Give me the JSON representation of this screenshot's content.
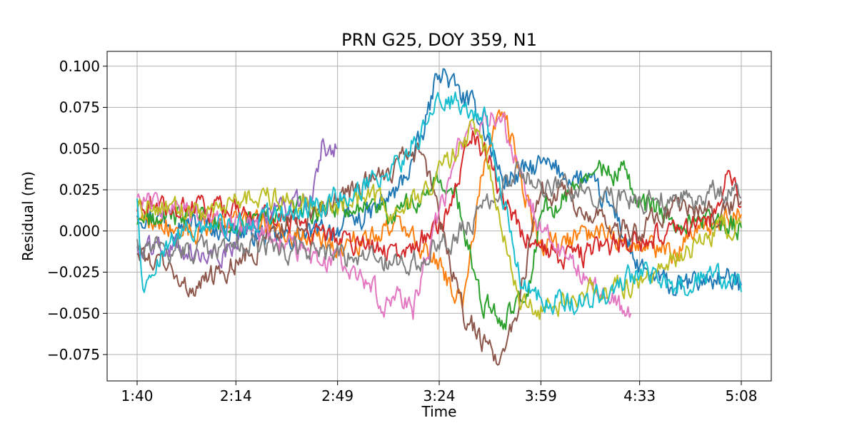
{
  "chart_data": {
    "type": "line",
    "title": "PRN G25, DOY 359, N1",
    "xlabel": "Time",
    "ylabel": "Residual (m)",
    "x_ticks": [
      "1:40",
      "2:14",
      "2:49",
      "3:24",
      "3:59",
      "4:33",
      "5:08"
    ],
    "x_range_minutes": [
      100,
      308
    ],
    "ylim": [
      -0.091,
      0.109
    ],
    "y_ticks": [
      {
        "value": 0.1,
        "label": "0.100"
      },
      {
        "value": 0.075,
        "label": "0.075"
      },
      {
        "value": 0.05,
        "label": "0.050"
      },
      {
        "value": 0.025,
        "label": "0.025"
      },
      {
        "value": 0.0,
        "label": "0.000"
      },
      {
        "value": -0.025,
        "label": "−0.025"
      },
      {
        "value": -0.05,
        "label": "−0.050"
      },
      {
        "value": -0.075,
        "label": "−0.075"
      }
    ],
    "grid": true,
    "series": [
      {
        "color": "#1f77b4",
        "x": [
          "1:40",
          "1:58",
          "2:14",
          "2:32",
          "2:49",
          "3:00",
          "3:10",
          "3:18",
          "3:24",
          "3:30",
          "3:38",
          "3:46",
          "3:59",
          "4:06",
          "4:15",
          "4:25",
          "4:33",
          "4:45",
          "5:00",
          "5:08"
        ],
        "values": [
          0.012,
          0.005,
          0.0,
          -0.005,
          0.002,
          0.01,
          0.025,
          0.055,
          0.1,
          0.085,
          0.07,
          0.03,
          0.04,
          0.035,
          0.03,
          0.01,
          -0.025,
          -0.035,
          -0.028,
          -0.033
        ]
      },
      {
        "color": "#ff7f0e",
        "x": [
          "1:40",
          "1:58",
          "2:14",
          "2:32",
          "2:49",
          "3:00",
          "3:10",
          "3:18",
          "3:24",
          "3:32",
          "3:40",
          "3:46",
          "3:59",
          "4:10",
          "4:20",
          "4:33",
          "4:45",
          "5:00",
          "5:08"
        ],
        "values": [
          0.01,
          0.0,
          0.008,
          -0.002,
          -0.008,
          -0.005,
          0.005,
          -0.01,
          -0.02,
          -0.045,
          0.05,
          0.072,
          -0.01,
          -0.005,
          0.002,
          -0.01,
          -0.012,
          0.005,
          0.01
        ]
      },
      {
        "color": "#2ca02c",
        "x": [
          "1:40",
          "1:58",
          "2:14",
          "2:32",
          "2:49",
          "3:00",
          "3:10",
          "3:18",
          "3:24",
          "3:30",
          "3:38",
          "3:46",
          "3:55",
          "3:59",
          "4:10",
          "4:20",
          "4:28",
          "4:33",
          "4:45",
          "5:00",
          "5:08"
        ],
        "values": [
          0.005,
          0.01,
          0.002,
          0.01,
          0.015,
          0.012,
          0.01,
          0.02,
          0.03,
          0.02,
          -0.04,
          -0.055,
          -0.03,
          0.01,
          0.025,
          0.035,
          0.038,
          0.015,
          0.01,
          0.005,
          0.002
        ]
      },
      {
        "color": "#d62728",
        "x": [
          "1:40",
          "1:58",
          "2:14",
          "2:32",
          "2:49",
          "3:00",
          "3:10",
          "3:18",
          "3:24",
          "3:30",
          "3:36",
          "3:44",
          "3:52",
          "3:59",
          "4:10",
          "4:20",
          "4:33",
          "4:45",
          "5:00",
          "5:03",
          "5:08"
        ],
        "values": [
          0.012,
          0.015,
          0.01,
          0.005,
          -0.005,
          -0.01,
          -0.015,
          -0.005,
          0.0,
          0.03,
          0.062,
          0.03,
          0.0,
          -0.01,
          -0.018,
          -0.01,
          -0.005,
          -0.002,
          0.01,
          0.035,
          0.015
        ]
      },
      {
        "color": "#9467bd",
        "x": [
          "1:40",
          "1:52",
          "2:05",
          "2:14",
          "2:25",
          "2:35",
          "2:40",
          "2:44",
          "2:46",
          "2:49"
        ],
        "values": [
          -0.01,
          -0.012,
          -0.02,
          -0.005,
          0.01,
          0.015,
          0.02,
          0.057,
          0.048,
          0.05
        ]
      },
      {
        "color": "#8c564b",
        "x": [
          "1:40",
          "1:50",
          "2:00",
          "2:14",
          "2:32",
          "2:49",
          "3:00",
          "3:10",
          "3:18",
          "3:24",
          "3:32",
          "3:40",
          "3:46",
          "3:52",
          "3:59",
          "4:10",
          "4:20",
          "4:33",
          "4:45",
          "5:00",
          "5:08"
        ],
        "values": [
          -0.015,
          -0.02,
          -0.035,
          -0.02,
          0.005,
          0.02,
          0.03,
          0.04,
          0.05,
          0.01,
          -0.05,
          -0.07,
          -0.08,
          -0.04,
          0.025,
          0.02,
          0.005,
          0.0,
          0.015,
          0.01,
          0.018
        ]
      },
      {
        "color": "#e377c2",
        "x": [
          "1:40",
          "1:58",
          "2:14",
          "2:32",
          "2:49",
          "3:00",
          "3:05",
          "3:10",
          "3:15",
          "3:20",
          "3:26",
          "3:30",
          "3:36",
          "3:40",
          "3:46",
          "3:59",
          "4:10",
          "4:20",
          "4:25",
          "4:28",
          "4:30"
        ],
        "values": [
          0.018,
          0.01,
          0.005,
          -0.01,
          -0.02,
          -0.03,
          -0.045,
          -0.04,
          -0.05,
          -0.01,
          0.02,
          0.05,
          0.06,
          0.07,
          0.065,
          0.0,
          -0.02,
          -0.04,
          -0.045,
          -0.052,
          -0.05
        ]
      },
      {
        "color": "#7f7f7f",
        "x": [
          "1:40",
          "1:58",
          "2:14",
          "2:32",
          "2:49",
          "3:00",
          "3:10",
          "3:18",
          "3:24",
          "3:32",
          "3:40",
          "3:46",
          "3:52",
          "3:59",
          "4:10",
          "4:20",
          "4:33",
          "4:45",
          "5:00",
          "5:08"
        ],
        "values": [
          -0.008,
          -0.012,
          -0.01,
          -0.012,
          -0.015,
          -0.018,
          -0.02,
          -0.015,
          -0.01,
          0.0,
          0.015,
          0.03,
          0.035,
          0.03,
          0.025,
          0.02,
          0.018,
          0.02,
          0.025,
          0.02
        ]
      },
      {
        "color": "#bcbd22",
        "x": [
          "1:40",
          "1:58",
          "2:14",
          "2:32",
          "2:49",
          "3:00",
          "3:10",
          "3:18",
          "3:24",
          "3:30",
          "3:36",
          "3:40",
          "3:46",
          "3:52",
          "3:59",
          "4:10",
          "4:20",
          "4:33",
          "4:40",
          "4:45",
          "5:00",
          "5:08"
        ],
        "values": [
          0.015,
          0.01,
          0.018,
          0.02,
          0.015,
          0.02,
          0.012,
          0.02,
          0.035,
          0.05,
          0.06,
          0.045,
          0.0,
          -0.04,
          -0.048,
          -0.04,
          -0.035,
          -0.03,
          -0.025,
          -0.015,
          0.0,
          0.005
        ]
      },
      {
        "color": "#17becf",
        "x": [
          "1:40",
          "1:42",
          "1:50",
          "2:00",
          "2:14",
          "2:32",
          "2:49",
          "3:00",
          "3:10",
          "3:18",
          "3:24",
          "3:30",
          "3:40",
          "3:46",
          "3:52",
          "3:59",
          "4:10",
          "4:20",
          "4:33",
          "4:45",
          "5:00",
          "5:08"
        ],
        "values": [
          0.015,
          -0.037,
          -0.005,
          0.005,
          0.002,
          0.01,
          0.02,
          0.03,
          0.04,
          0.06,
          0.075,
          0.08,
          0.07,
          0.02,
          -0.03,
          -0.04,
          -0.045,
          -0.04,
          -0.025,
          -0.035,
          -0.025,
          -0.037
        ]
      }
    ]
  }
}
